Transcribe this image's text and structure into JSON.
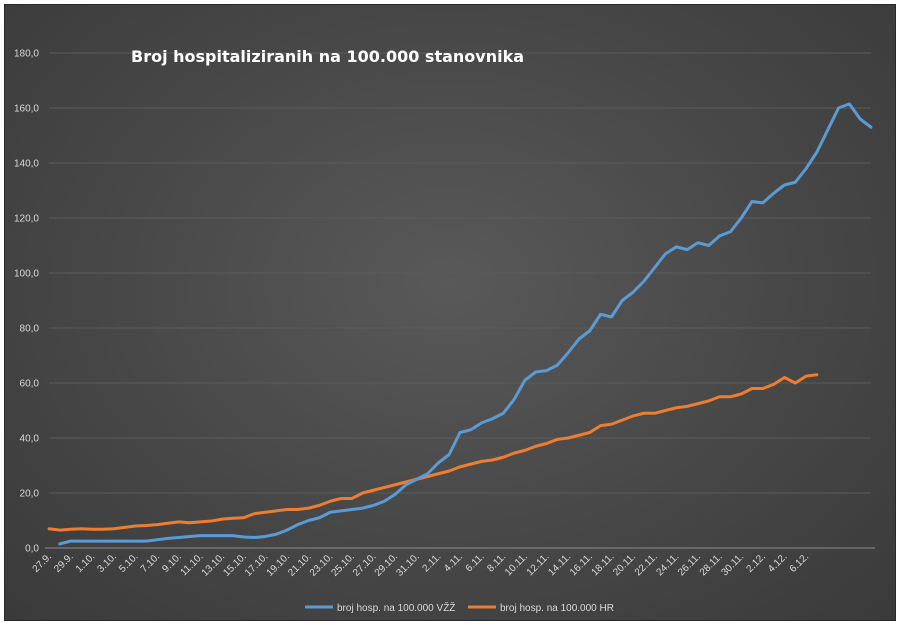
{
  "chart_data": {
    "type": "line",
    "title": "Broj hospitaliziranih na 100.000 stanovnika",
    "xlabel": "",
    "ylabel": "",
    "ylim": [
      0,
      180
    ],
    "yticks": [
      0,
      20,
      40,
      60,
      80,
      100,
      120,
      140,
      160,
      180
    ],
    "ytick_labels": [
      "0,0",
      "20,0",
      "40,0",
      "60,0",
      "80,0",
      "100,0",
      "120,0",
      "140,0",
      "160,0",
      "180,0"
    ],
    "xtick_labels": [
      "27.9.",
      "29.9.",
      "1.10.",
      "3.10.",
      "5.10.",
      "7.10.",
      "9.10.",
      "11.10.",
      "13.10.",
      "15.10.",
      "17.10.",
      "19.10.",
      "21.10.",
      "23.10.",
      "25.10.",
      "27.10.",
      "29.10.",
      "31.10.",
      "2.11.",
      "4.11.",
      "6.11.",
      "8.11.",
      "10.11.",
      "12.11.",
      "14.11.",
      "16.11.",
      "18.11.",
      "20.11.",
      "22.11.",
      "24.11.",
      "26.11.",
      "28.11.",
      "30.11.",
      "2.12.",
      "4.12.",
      "6.12."
    ],
    "grid": true,
    "legend_position": "bottom",
    "series": [
      {
        "name": "broj hosp. na 100.000 VŽŽ",
        "color": "#5b9bd5",
        "start_index": 1,
        "values": [
          1.5,
          2.5,
          2.5,
          2.5,
          2.5,
          2.5,
          2.5,
          2.5,
          2.5,
          3,
          3.5,
          3.8,
          4.2,
          4.5,
          4.5,
          4.5,
          4.5,
          4,
          3.8,
          4.2,
          5,
          6.5,
          8.5,
          10,
          11,
          13,
          13.5,
          14,
          14.5,
          15.5,
          17,
          19.5,
          23,
          25,
          27,
          31,
          34,
          42,
          43,
          45.5,
          47,
          49,
          54,
          61,
          64,
          64.5,
          66.5,
          71,
          76,
          79,
          85,
          84,
          90,
          93,
          97,
          102,
          107,
          109.5,
          108.5,
          111,
          110,
          113.5,
          115,
          120,
          126,
          125.5,
          129,
          132,
          133,
          138,
          144,
          152,
          160,
          161.5,
          156,
          153
        ]
      },
      {
        "name": "broj hosp. na 100.000 HR",
        "color": "#ed7d31",
        "start_index": 0,
        "values": [
          7,
          6.5,
          6.8,
          7,
          6.8,
          6.8,
          7,
          7.5,
          8,
          8.2,
          8.5,
          9,
          9.5,
          9.2,
          9.5,
          9.8,
          10.5,
          10.8,
          11,
          12.5,
          13,
          13.5,
          14,
          14,
          14.5,
          15.5,
          17,
          18,
          18,
          20,
          21,
          22,
          23,
          24,
          25,
          26,
          27,
          28,
          29.5,
          30.5,
          31.5,
          32,
          33,
          34.5,
          35.5,
          37,
          38,
          39.5,
          40,
          41,
          42,
          44.5,
          45,
          46.5,
          48,
          49,
          49,
          50,
          51,
          51.5,
          52.5,
          53.5,
          55,
          55,
          56,
          58,
          58,
          59.5,
          62,
          60,
          62.5,
          63
        ]
      }
    ]
  }
}
